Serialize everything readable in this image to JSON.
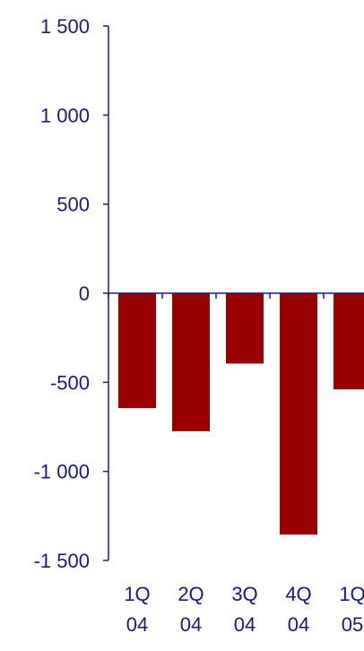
{
  "chart_data": {
    "type": "bar",
    "title": "",
    "xlabel": "",
    "ylabel": "",
    "categories": [
      [
        "1Q",
        "04"
      ],
      [
        "2Q",
        "04"
      ],
      [
        "3Q",
        "04"
      ],
      [
        "4Q",
        "04"
      ],
      [
        "1Q",
        "05"
      ]
    ],
    "values": [
      -645,
      -775,
      -395,
      -1355,
      -540
    ],
    "ylim": [
      -1500,
      1500
    ],
    "yticks": [
      1500,
      1000,
      500,
      0,
      -500,
      -1000,
      -1500
    ],
    "ytick_labels": [
      "1 500",
      "1 000",
      "500",
      "0",
      "-500",
      "-1 000",
      "-1 500"
    ],
    "grid": false,
    "legend": "none",
    "colors": {
      "bar": "#990000",
      "axis": "#1a1a7a",
      "text": "#1a1a7a"
    }
  }
}
